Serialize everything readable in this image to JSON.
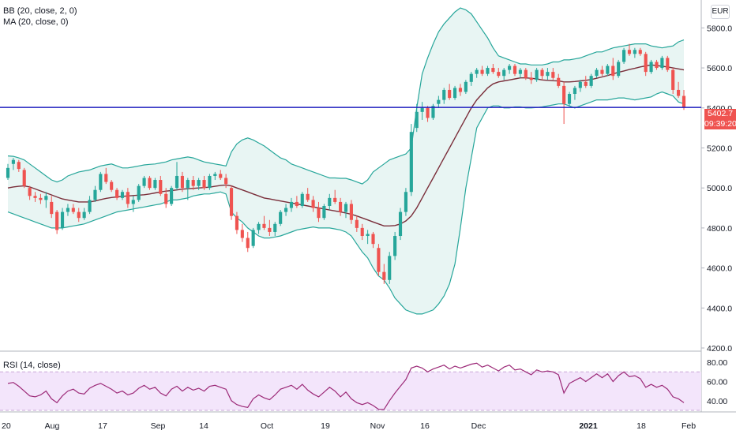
{
  "indicators": {
    "bb_label": "BB (20, close, 2, 0)",
    "ma_label": "MA (20, close, 0)",
    "rsi_label": "RSI (14, close)"
  },
  "currency": "EUR",
  "price_axis": [
    "5800.0",
    "5600.0",
    "5400.0",
    "5200.0",
    "5000.0",
    "4800.0",
    "4600.0",
    "4400.0",
    "4200.0"
  ],
  "rsi_axis": [
    "80.00",
    "60.00",
    "40.00"
  ],
  "time_axis": [
    "20",
    "Aug",
    "17",
    "Sep",
    "14",
    "Oct",
    "19",
    "Nov",
    "16",
    "Dec",
    "2021",
    "18",
    "Feb"
  ],
  "last_price": "5402.7",
  "countdown": "09:39:20",
  "colors": {
    "up": "#26a69a",
    "down": "#ef5350",
    "bb_band": "#26a69a",
    "bb_fill": "#e8f5f3",
    "ma": "#7a2e3a",
    "rsi_line": "#9c2a78",
    "rsi_band": "#f3e5fb",
    "hline": "#1f1fbf",
    "price_tag": "#ef5350",
    "countdown_tag": "#ef5350"
  },
  "chart_data": {
    "type": "candlestick",
    "price_range": [
      4200,
      5900
    ],
    "rsi_range": [
      30,
      85
    ],
    "horizontal_line": 5402.7,
    "candles": [
      [
        5050,
        5120,
        5040,
        5100
      ],
      [
        5120,
        5150,
        5090,
        5140
      ],
      [
        5130,
        5140,
        5080,
        5095
      ],
      [
        5090,
        5100,
        5000,
        5010
      ],
      [
        5000,
        5010,
        4940,
        4960
      ],
      [
        4960,
        4980,
        4930,
        4950
      ],
      [
        4950,
        4970,
        4920,
        4940
      ],
      [
        4940,
        4980,
        4900,
        4960
      ],
      [
        4930,
        4960,
        4850,
        4870
      ],
      [
        4880,
        4890,
        4770,
        4790
      ],
      [
        4800,
        4900,
        4790,
        4880
      ],
      [
        4880,
        4920,
        4860,
        4900
      ],
      [
        4900,
        4920,
        4870,
        4880
      ],
      [
        4880,
        4900,
        4830,
        4850
      ],
      [
        4850,
        4900,
        4840,
        4880
      ],
      [
        4880,
        4960,
        4870,
        4940
      ],
      [
        4940,
        5010,
        4930,
        4990
      ],
      [
        4990,
        5080,
        4980,
        5070
      ],
      [
        5070,
        5100,
        5020,
        5030
      ],
      [
        5030,
        5040,
        4980,
        4990
      ],
      [
        4990,
        5000,
        4940,
        4950
      ],
      [
        4950,
        4990,
        4940,
        4980
      ],
      [
        4980,
        5000,
        4900,
        4920
      ],
      [
        4920,
        4960,
        4880,
        4940
      ],
      [
        4940,
        5020,
        4930,
        5010
      ],
      [
        5010,
        5060,
        5000,
        5050
      ],
      [
        5050,
        5060,
        4990,
        5000
      ],
      [
        5000,
        5050,
        4990,
        5040
      ],
      [
        5040,
        5060,
        4960,
        4970
      ],
      [
        4970,
        5000,
        4900,
        4920
      ],
      [
        4920,
        5010,
        4910,
        5000
      ],
      [
        5000,
        5130,
        4990,
        5060
      ],
      [
        5060,
        5080,
        4980,
        5000
      ],
      [
        5000,
        5050,
        4940,
        5040
      ],
      [
        5040,
        5060,
        4990,
        5010
      ],
      [
        5010,
        5050,
        4990,
        5040
      ],
      [
        5040,
        5060,
        4990,
        5000
      ],
      [
        5000,
        5070,
        4990,
        5060
      ],
      [
        5060,
        5080,
        5040,
        5070
      ],
      [
        5070,
        5090,
        5040,
        5050
      ],
      [
        5050,
        5070,
        5000,
        5020
      ],
      [
        5000,
        5010,
        4840,
        4860
      ],
      [
        4860,
        4880,
        4770,
        4790
      ],
      [
        4790,
        4820,
        4730,
        4750
      ],
      [
        4750,
        4780,
        4680,
        4700
      ],
      [
        4710,
        4800,
        4700,
        4790
      ],
      [
        4790,
        4830,
        4770,
        4820
      ],
      [
        4820,
        4860,
        4790,
        4800
      ],
      [
        4800,
        4840,
        4760,
        4780
      ],
      [
        4780,
        4830,
        4760,
        4820
      ],
      [
        4820,
        4890,
        4810,
        4880
      ],
      [
        4880,
        4920,
        4860,
        4900
      ],
      [
        4900,
        4950,
        4880,
        4930
      ],
      [
        4930,
        4960,
        4900,
        4910
      ],
      [
        4910,
        4980,
        4900,
        4970
      ],
      [
        4970,
        5000,
        4930,
        4940
      ],
      [
        4940,
        4960,
        4880,
        4900
      ],
      [
        4900,
        4930,
        4830,
        4850
      ],
      [
        4850,
        4920,
        4840,
        4910
      ],
      [
        4910,
        4970,
        4890,
        4950
      ],
      [
        4950,
        4990,
        4920,
        4930
      ],
      [
        4930,
        4950,
        4860,
        4880
      ],
      [
        4880,
        4930,
        4850,
        4920
      ],
      [
        4920,
        4940,
        4820,
        4840
      ],
      [
        4840,
        4860,
        4780,
        4800
      ],
      [
        4800,
        4820,
        4740,
        4760
      ],
      [
        4760,
        4790,
        4720,
        4770
      ],
      [
        4770,
        4780,
        4700,
        4720
      ],
      [
        4700,
        4720,
        4560,
        4580
      ],
      [
        4580,
        4620,
        4520,
        4540
      ],
      [
        4540,
        4680,
        4520,
        4660
      ],
      [
        4660,
        4780,
        4640,
        4760
      ],
      [
        4760,
        4900,
        4740,
        4880
      ],
      [
        4880,
        5000,
        4860,
        4980
      ],
      [
        4980,
        5320,
        4960,
        5280
      ],
      [
        5300,
        5420,
        5280,
        5380
      ],
      [
        5380,
        5430,
        5340,
        5400
      ],
      [
        5400,
        5410,
        5330,
        5350
      ],
      [
        5350,
        5420,
        5340,
        5410
      ],
      [
        5420,
        5460,
        5400,
        5440
      ],
      [
        5440,
        5500,
        5420,
        5490
      ],
      [
        5490,
        5520,
        5440,
        5450
      ],
      [
        5450,
        5510,
        5440,
        5500
      ],
      [
        5500,
        5520,
        5460,
        5480
      ],
      [
        5480,
        5540,
        5470,
        5530
      ],
      [
        5530,
        5580,
        5510,
        5570
      ],
      [
        5570,
        5600,
        5550,
        5590
      ],
      [
        5590,
        5610,
        5560,
        5570
      ],
      [
        5570,
        5610,
        5560,
        5600
      ],
      [
        5600,
        5620,
        5570,
        5580
      ],
      [
        5580,
        5600,
        5550,
        5560
      ],
      [
        5560,
        5600,
        5540,
        5590
      ],
      [
        5590,
        5620,
        5570,
        5610
      ],
      [
        5610,
        5620,
        5560,
        5570
      ],
      [
        5570,
        5600,
        5550,
        5590
      ],
      [
        5590,
        5600,
        5540,
        5550
      ],
      [
        5550,
        5580,
        5520,
        5540
      ],
      [
        5540,
        5600,
        5530,
        5590
      ],
      [
        5590,
        5600,
        5540,
        5560
      ],
      [
        5560,
        5600,
        5540,
        5580
      ],
      [
        5580,
        5600,
        5540,
        5550
      ],
      [
        5550,
        5570,
        5500,
        5510
      ],
      [
        5510,
        5530,
        5320,
        5420
      ],
      [
        5420,
        5480,
        5410,
        5470
      ],
      [
        5470,
        5510,
        5440,
        5500
      ],
      [
        5500,
        5540,
        5480,
        5530
      ],
      [
        5530,
        5560,
        5500,
        5510
      ],
      [
        5510,
        5570,
        5500,
        5560
      ],
      [
        5560,
        5600,
        5550,
        5590
      ],
      [
        5590,
        5610,
        5560,
        5570
      ],
      [
        5570,
        5620,
        5560,
        5610
      ],
      [
        5610,
        5650,
        5540,
        5560
      ],
      [
        5560,
        5640,
        5550,
        5630
      ],
      [
        5630,
        5700,
        5620,
        5690
      ],
      [
        5690,
        5720,
        5660,
        5670
      ],
      [
        5670,
        5700,
        5650,
        5690
      ],
      [
        5690,
        5700,
        5660,
        5670
      ],
      [
        5670,
        5680,
        5560,
        5580
      ],
      [
        5580,
        5640,
        5570,
        5630
      ],
      [
        5630,
        5640,
        5590,
        5600
      ],
      [
        5600,
        5660,
        5590,
        5650
      ],
      [
        5650,
        5660,
        5580,
        5590
      ],
      [
        5590,
        5600,
        5470,
        5490
      ],
      [
        5490,
        5530,
        5450,
        5460
      ],
      [
        5460,
        5490,
        5390,
        5402.7
      ]
    ],
    "rsi": [
      58,
      59,
      55,
      50,
      45,
      44,
      46,
      50,
      42,
      38,
      45,
      50,
      52,
      48,
      47,
      53,
      56,
      58,
      55,
      52,
      48,
      50,
      46,
      48,
      53,
      56,
      52,
      54,
      48,
      45,
      52,
      55,
      50,
      54,
      51,
      53,
      50,
      55,
      56,
      54,
      52,
      40,
      36,
      34,
      33,
      42,
      46,
      43,
      41,
      46,
      52,
      54,
      56,
      52,
      57,
      51,
      47,
      44,
      49,
      54,
      50,
      44,
      49,
      42,
      38,
      36,
      38,
      35,
      31,
      31,
      40,
      48,
      55,
      62,
      74,
      76,
      74,
      70,
      73,
      75,
      77,
      73,
      76,
      74,
      76,
      78,
      79,
      75,
      77,
      74,
      71,
      75,
      77,
      72,
      73,
      70,
      67,
      72,
      70,
      71,
      70,
      67,
      48,
      58,
      61,
      64,
      60,
      64,
      68,
      64,
      68,
      60,
      66,
      70,
      65,
      66,
      63,
      54,
      57,
      54,
      56,
      52,
      44,
      42,
      38
    ],
    "bb_upper": [
      5160,
      5158,
      5150,
      5140,
      5120,
      5100,
      5080,
      5060,
      5040,
      5030,
      5040,
      5060,
      5070,
      5080,
      5085,
      5090,
      5100,
      5110,
      5115,
      5120,
      5110,
      5100,
      5100,
      5105,
      5110,
      5115,
      5118,
      5120,
      5125,
      5130,
      5140,
      5145,
      5150,
      5155,
      5150,
      5140,
      5130,
      5125,
      5120,
      5115,
      5110,
      5180,
      5220,
      5240,
      5250,
      5240,
      5225,
      5210,
      5190,
      5170,
      5150,
      5140,
      5120,
      5110,
      5100,
      5090,
      5080,
      5070,
      5060,
      5050,
      5050,
      5048,
      5048,
      5040,
      5030,
      5020,
      5040,
      5080,
      5100,
      5120,
      5140,
      5150,
      5160,
      5170,
      5200,
      5400,
      5570,
      5650,
      5720,
      5780,
      5820,
      5850,
      5880,
      5900,
      5890,
      5870,
      5830,
      5790,
      5750,
      5700,
      5660,
      5650,
      5640,
      5630,
      5620,
      5620,
      5615,
      5615,
      5615,
      5620,
      5630,
      5630,
      5640,
      5640,
      5645,
      5650,
      5660,
      5670,
      5680,
      5680,
      5690,
      5700,
      5705,
      5710,
      5715,
      5720,
      5720,
      5720,
      5710,
      5705,
      5700,
      5705,
      5710,
      5730,
      5740
    ],
    "bb_lower": [
      4880,
      4870,
      4860,
      4850,
      4840,
      4830,
      4820,
      4810,
      4800,
      4800,
      4800,
      4805,
      4810,
      4815,
      4820,
      4830,
      4840,
      4850,
      4860,
      4870,
      4880,
      4885,
      4890,
      4895,
      4900,
      4905,
      4910,
      4915,
      4920,
      4930,
      4940,
      4940,
      4945,
      4950,
      4960,
      4965,
      4970,
      4970,
      4975,
      4980,
      4970,
      4880,
      4850,
      4830,
      4800,
      4780,
      4760,
      4750,
      4750,
      4755,
      4760,
      4770,
      4780,
      4790,
      4795,
      4800,
      4805,
      4800,
      4800,
      4800,
      4795,
      4790,
      4780,
      4760,
      4720,
      4680,
      4650,
      4600,
      4560,
      4540,
      4500,
      4450,
      4420,
      4390,
      4380,
      4370,
      4370,
      4380,
      4390,
      4420,
      4460,
      4520,
      4620,
      4800,
      5000,
      5150,
      5300,
      5350,
      5400,
      5410,
      5410,
      5400,
      5400,
      5405,
      5405,
      5400,
      5400,
      5402,
      5405,
      5410,
      5415,
      5420,
      5420,
      5410,
      5400,
      5410,
      5420,
      5430,
      5440,
      5440,
      5440,
      5445,
      5450,
      5450,
      5445,
      5440,
      5445,
      5450,
      5455,
      5470,
      5480,
      5470,
      5460,
      5430,
      5420
    ],
    "ma": [
      5000,
      5005,
      5008,
      5010,
      5005,
      4995,
      4985,
      4975,
      4965,
      4955,
      4945,
      4940,
      4935,
      4930,
      4930,
      4930,
      4935,
      4942,
      4948,
      4952,
      4955,
      4958,
      4960,
      4962,
      4964,
      4966,
      4970,
      4975,
      4980,
      4984,
      4987,
      4990,
      4994,
      4996,
      4998,
      5000,
      5002,
      5004,
      5008,
      5012,
      5015,
      5010,
      5000,
      4990,
      4980,
      4970,
      4960,
      4950,
      4945,
      4940,
      4935,
      4930,
      4925,
      4920,
      4915,
      4910,
      4905,
      4900,
      4895,
      4890,
      4885,
      4880,
      4875,
      4868,
      4860,
      4850,
      4840,
      4830,
      4820,
      4810,
      4810,
      4812,
      4820,
      4835,
      4860,
      4900,
      4950,
      5000,
      5050,
      5100,
      5150,
      5200,
      5250,
      5300,
      5350,
      5400,
      5440,
      5470,
      5500,
      5520,
      5530,
      5535,
      5540,
      5545,
      5550,
      5550,
      5548,
      5545,
      5540,
      5538,
      5536,
      5535,
      5530,
      5530,
      5532,
      5535,
      5538,
      5542,
      5548,
      5555,
      5562,
      5570,
      5578,
      5585,
      5592,
      5598,
      5605,
      5610,
      5615,
      5612,
      5608,
      5605,
      5600,
      5595,
      5590
    ]
  }
}
